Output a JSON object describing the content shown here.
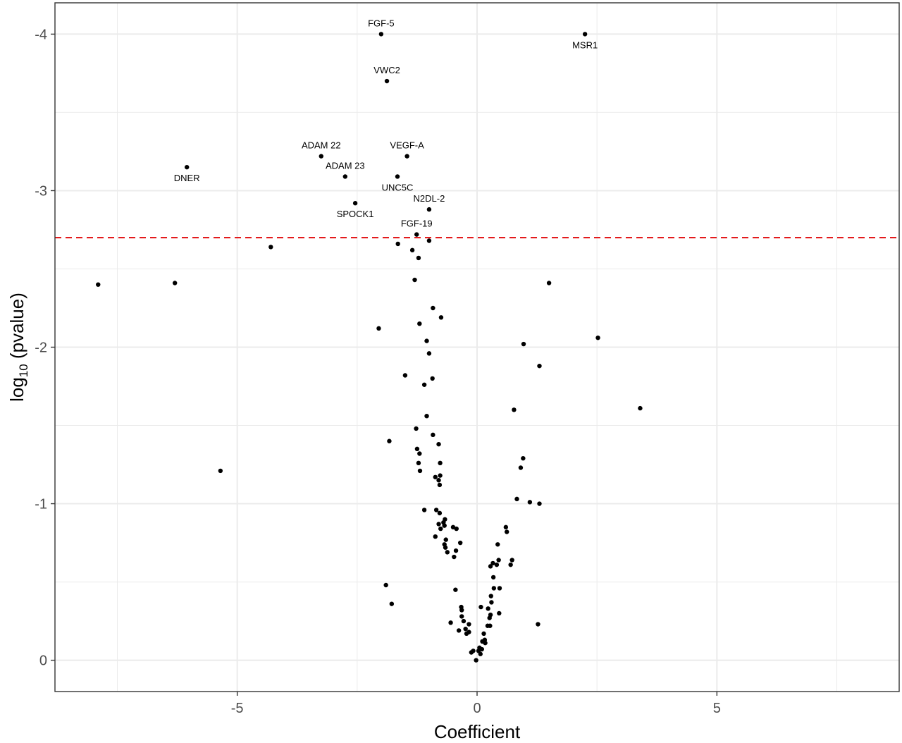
{
  "chart_data": {
    "type": "scatter",
    "xlabel": "Coefficient",
    "ylabel": {
      "prefix": "log",
      "subscript": "10",
      "suffix": " (pvalue)"
    },
    "xlim": [
      -8.8,
      8.8
    ],
    "ylim": [
      0.2,
      -4.2
    ],
    "x_ticks": [
      -5,
      0,
      5
    ],
    "x_tick_labels": [
      "-5",
      "0",
      "5"
    ],
    "y_ticks": [
      0,
      -1,
      -2,
      -3,
      -4
    ],
    "y_tick_labels": [
      "0",
      "-1",
      "-2",
      "-3",
      "-4"
    ],
    "grid": true,
    "threshold_line": {
      "y": -2.7,
      "color": "#e31a1c",
      "style": "dashed"
    },
    "point_color": "#000000",
    "labeled_points": [
      {
        "label": "FGF-5",
        "x": -2.0,
        "y": -4.0,
        "label_pos": "above"
      },
      {
        "label": "MSR1",
        "x": 2.25,
        "y": -4.0,
        "label_pos": "below"
      },
      {
        "label": "VWC2",
        "x": -1.88,
        "y": -3.7,
        "label_pos": "above"
      },
      {
        "label": "ADAM 22",
        "x": -3.25,
        "y": -3.22,
        "label_pos": "above"
      },
      {
        "label": "VEGF-A",
        "x": -1.46,
        "y": -3.22,
        "label_pos": "above"
      },
      {
        "label": "DNER",
        "x": -6.05,
        "y": -3.15,
        "label_pos": "below"
      },
      {
        "label": "ADAM 23",
        "x": -2.75,
        "y": -3.09,
        "label_pos": "above"
      },
      {
        "label": "UNC5C",
        "x": -1.66,
        "y": -3.09,
        "label_pos": "below"
      },
      {
        "label": "SPOCK1",
        "x": -2.54,
        "y": -2.92,
        "label_pos": "below"
      },
      {
        "label": "N2DL-2",
        "x": -1.0,
        "y": -2.88,
        "label_pos": "above"
      },
      {
        "label": "FGF-19",
        "x": -1.26,
        "y": -2.72,
        "label_pos": "above"
      }
    ],
    "points": [
      [
        -1.65,
        -2.66
      ],
      [
        -1.0,
        -2.68
      ],
      [
        -4.3,
        -2.64
      ],
      [
        -1.35,
        -2.62
      ],
      [
        -1.22,
        -2.57
      ],
      [
        -7.9,
        -2.4
      ],
      [
        -6.3,
        -2.41
      ],
      [
        1.5,
        -2.41
      ],
      [
        -1.3,
        -2.43
      ],
      [
        -0.92,
        -2.25
      ],
      [
        -0.75,
        -2.19
      ],
      [
        -2.05,
        -2.12
      ],
      [
        -1.2,
        -2.15
      ],
      [
        -1.05,
        -2.04
      ],
      [
        2.52,
        -2.06
      ],
      [
        -1.0,
        -1.96
      ],
      [
        0.97,
        -2.02
      ],
      [
        -1.5,
        -1.82
      ],
      [
        1.3,
        -1.88
      ],
      [
        -0.93,
        -1.8
      ],
      [
        -1.1,
        -1.76
      ],
      [
        0.77,
        -1.6
      ],
      [
        3.4,
        -1.61
      ],
      [
        -1.05,
        -1.56
      ],
      [
        -1.27,
        -1.48
      ],
      [
        -0.92,
        -1.44
      ],
      [
        -1.83,
        -1.4
      ],
      [
        -0.8,
        -1.38
      ],
      [
        -1.25,
        -1.35
      ],
      [
        -1.2,
        -1.32
      ],
      [
        0.96,
        -1.29
      ],
      [
        -1.22,
        -1.26
      ],
      [
        -0.77,
        -1.26
      ],
      [
        0.91,
        -1.23
      ],
      [
        -1.19,
        -1.21
      ],
      [
        -5.35,
        -1.21
      ],
      [
        -0.77,
        -1.18
      ],
      [
        -0.87,
        -1.17
      ],
      [
        -0.8,
        -1.15
      ],
      [
        -0.78,
        -1.12
      ],
      [
        0.83,
        -1.03
      ],
      [
        1.1,
        -1.01
      ],
      [
        1.3,
        -1.0
      ],
      [
        -1.1,
        -0.96
      ],
      [
        -0.85,
        -0.96
      ],
      [
        -0.78,
        -0.94
      ],
      [
        -0.67,
        -0.9
      ],
      [
        -0.7,
        -0.88
      ],
      [
        -0.8,
        -0.87
      ],
      [
        -0.68,
        -0.86
      ],
      [
        0.6,
        -0.85
      ],
      [
        -0.5,
        -0.85
      ],
      [
        -0.76,
        -0.84
      ],
      [
        -0.43,
        -0.84
      ],
      [
        0.62,
        -0.82
      ],
      [
        -0.87,
        -0.79
      ],
      [
        -0.65,
        -0.77
      ],
      [
        -0.35,
        -0.75
      ],
      [
        -0.68,
        -0.74
      ],
      [
        0.43,
        -0.74
      ],
      [
        -0.66,
        -0.72
      ],
      [
        -0.44,
        -0.7
      ],
      [
        -0.62,
        -0.69
      ],
      [
        -0.48,
        -0.66
      ],
      [
        0.73,
        -0.64
      ],
      [
        0.45,
        -0.64
      ],
      [
        0.33,
        -0.62
      ],
      [
        0.41,
        -0.61
      ],
      [
        0.7,
        -0.61
      ],
      [
        0.28,
        -0.6
      ],
      [
        0.34,
        -0.53
      ],
      [
        0.35,
        -0.46
      ],
      [
        0.47,
        -0.46
      ],
      [
        -1.9,
        -0.48
      ],
      [
        -0.45,
        -0.45
      ],
      [
        0.29,
        -0.41
      ],
      [
        0.3,
        -0.37
      ],
      [
        -1.78,
        -0.36
      ],
      [
        0.08,
        -0.34
      ],
      [
        0.23,
        -0.33
      ],
      [
        -0.33,
        -0.34
      ],
      [
        -0.32,
        -0.32
      ],
      [
        0.46,
        -0.3
      ],
      [
        0.28,
        -0.29
      ],
      [
        -0.32,
        -0.28
      ],
      [
        0.26,
        -0.27
      ],
      [
        -0.28,
        -0.25
      ],
      [
        -0.55,
        -0.24
      ],
      [
        -0.17,
        -0.23
      ],
      [
        1.27,
        -0.23
      ],
      [
        0.22,
        -0.22
      ],
      [
        0.27,
        -0.22
      ],
      [
        -0.24,
        -0.2
      ],
      [
        -0.38,
        -0.19
      ],
      [
        -0.17,
        -0.18
      ],
      [
        -0.22,
        -0.17
      ],
      [
        0.14,
        -0.17
      ],
      [
        0.16,
        -0.13
      ],
      [
        0.11,
        -0.12
      ],
      [
        0.17,
        -0.11
      ],
      [
        0.05,
        -0.08
      ],
      [
        0.1,
        -0.07
      ],
      [
        0.03,
        -0.06
      ],
      [
        -0.08,
        -0.06
      ],
      [
        -0.12,
        -0.05
      ],
      [
        0.07,
        -0.04
      ],
      [
        -0.02,
        0.0
      ]
    ]
  }
}
